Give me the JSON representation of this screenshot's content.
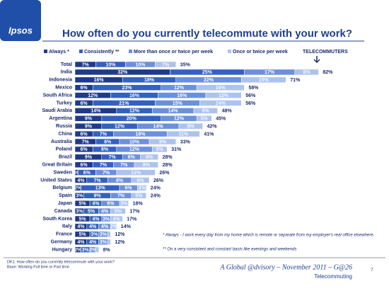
{
  "logo": "Ipsos",
  "chart_data": {
    "type": "bar",
    "orientation": "horizontal",
    "stacked": true,
    "title": "How often do you currently telecommute with your work?",
    "categories": [
      "Total",
      "India",
      "Indonesia",
      "Mexico",
      "South Africa",
      "Turkey",
      "Saudi Arabia",
      "Argentina",
      "Russia",
      "China",
      "Australia",
      "Poland",
      "Brazil",
      "Great Britain",
      "Sweden",
      "United States",
      "Belgium",
      "Spain",
      "Japan",
      "Canada",
      "South Korea",
      "Italy",
      "France",
      "Germany",
      "Hungary"
    ],
    "series": [
      {
        "name": "Always *",
        "color": "#1f3a8a",
        "values": [
          7,
          32,
          16,
          6,
          12,
          6,
          14,
          9,
          9,
          6,
          7,
          6,
          9,
          6,
          1,
          4,
          2,
          3,
          5,
          3,
          5,
          4,
          5,
          4,
          2
        ],
        "value_labels": [
          "7%",
          "32%",
          "16%",
          "6%",
          "12%",
          "6%",
          "14%",
          "9%",
          "9%",
          "6%",
          "7%",
          "6%",
          "9%",
          "6%",
          "%",
          "4%",
          "2%",
          "3%",
          "5%",
          "3%",
          "5%",
          "4%",
          "5%",
          "4%",
          "2%"
        ]
      },
      {
        "name": "Consistently **",
        "color": "#3461c1",
        "values": [
          10,
          25,
          18,
          23,
          16,
          21,
          12,
          20,
          12,
          7,
          8,
          8,
          7,
          7,
          6,
          7,
          13,
          9,
          4,
          5,
          4,
          4,
          3,
          4,
          3
        ],
        "value_labels": [
          "10%",
          "25%",
          "18%",
          "23%",
          "16%",
          "21%",
          "12%",
          "20%",
          "12%",
          "7%",
          "8%",
          "8%",
          "7%",
          "7%",
          "6%",
          "7%",
          "13%",
          "9%",
          "4%",
          "5%",
          "4%",
          "4%",
          "3%",
          "4%",
          "3%"
        ]
      },
      {
        "name": "More than once or twice per week",
        "color": "#6b90dc",
        "values": [
          10,
          17,
          22,
          12,
          16,
          15,
          14,
          12,
          14,
          18,
          10,
          12,
          6,
          7,
          7,
          8,
          6,
          7,
          6,
          4,
          3,
          4,
          3,
          3,
          2
        ],
        "value_labels": [
          "10%",
          "17%",
          "22%",
          "12%",
          "16%",
          "15%",
          "14%",
          "12%",
          "14%",
          "18%",
          "10%",
          "12%",
          "6%",
          "7%",
          "7%",
          "8%",
          "6%",
          "7%",
          "6%",
          "4%",
          "3%",
          "4%",
          "3%",
          "3%",
          "2%"
        ]
      },
      {
        "name": "Once or twice per week",
        "color": "#adc3ee",
        "values": [
          7,
          8,
          15,
          16,
          12,
          14,
          8,
          5,
          8,
          11,
          9,
          5,
          6,
          8,
          13,
          6,
          3,
          5,
          3,
          5,
          4,
          2,
          1,
          1,
          1
        ],
        "value_labels": [
          "7%",
          "8%",
          "15%",
          "16%",
          "12%",
          "14%",
          "8%",
          "5%",
          "8%",
          "11%",
          "9%",
          "5%",
          "6%",
          "8%",
          "13%",
          "6%",
          "3%",
          "5%",
          "3%",
          "5%",
          "4%",
          "2%",
          null,
          null,
          null
        ]
      }
    ],
    "totals": {
      "name": "TELECOMMUTERS",
      "values": [
        35,
        82,
        71,
        58,
        56,
        56,
        48,
        45,
        42,
        41,
        33,
        31,
        28,
        28,
        26,
        26,
        24,
        24,
        18,
        17,
        17,
        14,
        12,
        12,
        8
      ],
      "value_labels": [
        "35%",
        "82%",
        "71%",
        "58%",
        "56%",
        "56%",
        "48%",
        "45%",
        "42%",
        "41%",
        "33%",
        "31%",
        "28%",
        "28%",
        "26%",
        "26%",
        "24%",
        "24%",
        "18%",
        "17%",
        "17%",
        "14%",
        "12%",
        "12%",
        "8%"
      ]
    }
  },
  "footnotes": [
    "* Always - I work every day from my home which is remote or separate from my employer's real office elsewhere.",
    "** On a very consistent and constant basis like evenings and weekends"
  ],
  "source": [
    "DK1. How often do you currently telecommute with your work?",
    "Base: Working Full time or Part time"
  ],
  "footer": {
    "brand": "A Global @dvisory – November 2011 – G@26",
    "topic": "Telecommuting",
    "page": "7"
  }
}
